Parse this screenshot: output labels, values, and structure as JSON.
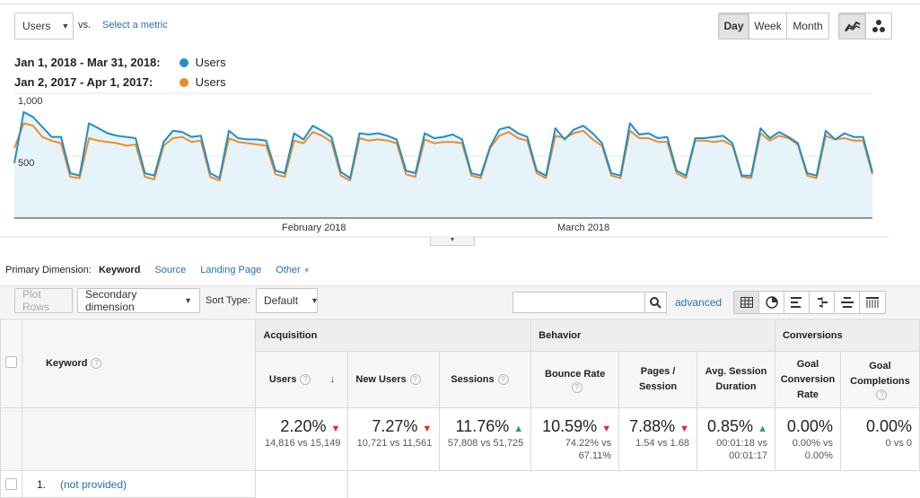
{
  "compare": {
    "metric_select": "Users",
    "vs_label": "vs.",
    "select_metric_link": "Select a metric"
  },
  "period_buttons": [
    "Day",
    "Week",
    "Month"
  ],
  "active_period": "Day",
  "legend": [
    {
      "range": "Jan 1, 2018 - Mar 31, 2018:",
      "label": "Users",
      "color": "#1f8fc9"
    },
    {
      "range": "Jan 2, 2017 - Apr 1, 2017:",
      "label": "Users",
      "color": "#ed8c2a"
    }
  ],
  "chart_data": {
    "type": "line",
    "ylim": [
      0,
      1000
    ],
    "y_ticks": [
      "1,000",
      "500"
    ],
    "x_labels": [
      "February 2018",
      "March 2018"
    ],
    "series": [
      {
        "name": "Users",
        "color": "#1f8fc9",
        "values": [
          440,
          850,
          810,
          730,
          650,
          650,
          360,
          340,
          760,
          720,
          680,
          660,
          650,
          640,
          360,
          340,
          610,
          700,
          690,
          650,
          660,
          360,
          320,
          700,
          640,
          630,
          630,
          620,
          380,
          360,
          680,
          630,
          740,
          700,
          650,
          370,
          320,
          680,
          670,
          680,
          660,
          630,
          380,
          360,
          680,
          640,
          650,
          670,
          630,
          360,
          340,
          570,
          710,
          730,
          680,
          650,
          380,
          340,
          720,
          630,
          710,
          740,
          680,
          600,
          360,
          340,
          760,
          670,
          680,
          640,
          650,
          380,
          340,
          640,
          640,
          650,
          660,
          600,
          340,
          340,
          720,
          640,
          690,
          650,
          600,
          360,
          340,
          700,
          630,
          680,
          650,
          650,
          370
        ]
      },
      {
        "name": "Users",
        "color": "#ed8c2a",
        "values": [
          560,
          760,
          740,
          650,
          620,
          600,
          330,
          320,
          640,
          620,
          610,
          600,
          580,
          590,
          330,
          310,
          580,
          640,
          650,
          610,
          620,
          330,
          300,
          640,
          610,
          600,
          590,
          580,
          350,
          330,
          620,
          600,
          690,
          660,
          610,
          340,
          300,
          640,
          620,
          630,
          620,
          600,
          350,
          330,
          630,
          600,
          610,
          610,
          600,
          340,
          320,
          560,
          660,
          690,
          640,
          620,
          360,
          320,
          660,
          640,
          680,
          700,
          630,
          580,
          340,
          320,
          700,
          640,
          640,
          610,
          610,
          360,
          320,
          620,
          620,
          610,
          620,
          580,
          330,
          320,
          680,
          620,
          660,
          640,
          590,
          340,
          320,
          660,
          630,
          640,
          620,
          620,
          350
        ]
      }
    ]
  },
  "dimension_bar": {
    "label": "Primary Dimension:",
    "current": "Keyword",
    "options": [
      "Source",
      "Landing Page",
      "Other"
    ]
  },
  "toolbar": {
    "plot_rows": "Plot Rows",
    "secondary_dimension": "Secondary dimension",
    "sort_type_label": "Sort Type:",
    "sort_type_value": "Default",
    "search_value": "",
    "advanced": "advanced"
  },
  "table": {
    "keyword_header": "Keyword",
    "groups": [
      "Acquisition",
      "Behavior",
      "Conversions"
    ],
    "metrics": [
      {
        "name": "Users",
        "pct": "2.20%",
        "dir": "down",
        "sub1": "14,816 vs 15,149",
        "sub2": ""
      },
      {
        "name": "New Users",
        "pct": "7.27%",
        "dir": "down",
        "sub1": "10,721 vs 11,561",
        "sub2": ""
      },
      {
        "name": "Sessions",
        "pct": "11.76%",
        "dir": "up",
        "sub1": "57,808 vs 51,725",
        "sub2": ""
      },
      {
        "name": "Bounce Rate",
        "pct": "10.59%",
        "dir": "down",
        "sub1": "74.22% vs",
        "sub2": "67.11%"
      },
      {
        "name": "Pages / Session",
        "pct": "7.88%",
        "dir": "down",
        "sub1": "1.54 vs 1.68",
        "sub2": ""
      },
      {
        "name": "Avg. Session Duration",
        "pct": "0.85%",
        "dir": "up",
        "sub1": "00:01:18 vs",
        "sub2": "00:01:17"
      },
      {
        "name": "Goal Conversion Rate",
        "pct": "0.00%",
        "dir": "",
        "sub1": "0.00% vs",
        "sub2": "0.00%"
      },
      {
        "name": "Goal Completions",
        "pct": "0.00%",
        "dir": "",
        "sub1": "0 vs 0",
        "sub2": ""
      }
    ],
    "first_row": {
      "index": "1.",
      "keyword": "(not provided)"
    }
  }
}
